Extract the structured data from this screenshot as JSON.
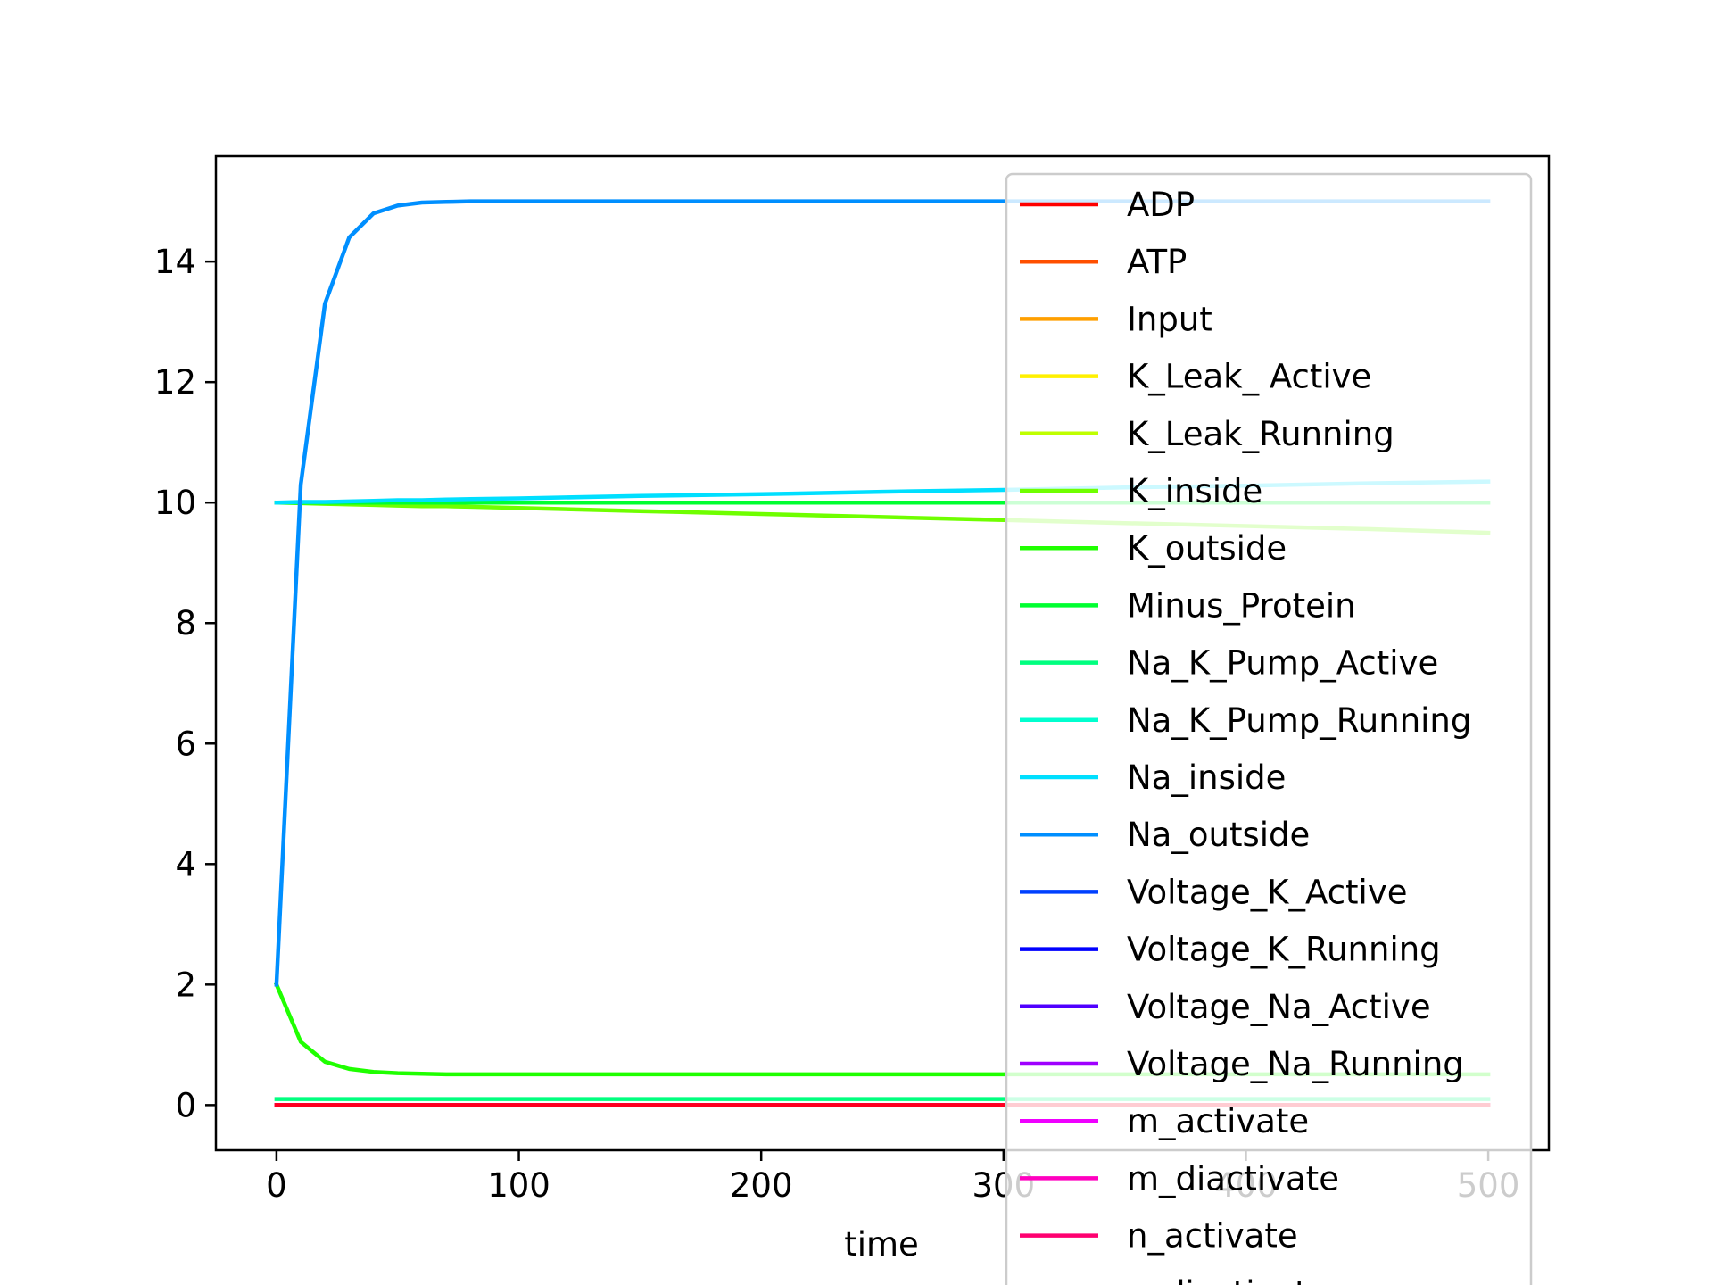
{
  "chart_data": {
    "type": "line",
    "xlabel": "time",
    "ylabel": "",
    "xlim": [
      -25,
      525
    ],
    "ylim": [
      -0.75,
      15.75
    ],
    "xticks": [
      0,
      100,
      200,
      300,
      400,
      500
    ],
    "yticks": [
      0,
      2,
      4,
      6,
      8,
      10,
      12,
      14
    ],
    "xtick_labels": [
      "0",
      "100",
      "200",
      "300",
      "400",
      "500"
    ],
    "ytick_labels": [
      "0",
      "2",
      "4",
      "6",
      "8",
      "10",
      "12",
      "14"
    ],
    "legend_position": "right",
    "x": [
      0,
      10,
      20,
      30,
      40,
      50,
      60,
      70,
      80,
      100,
      150,
      200,
      250,
      300,
      350,
      400,
      450,
      500
    ],
    "series": [
      {
        "name": "ADP",
        "color": "#ff0000",
        "values": [
          0,
          0,
          0,
          0,
          0,
          0,
          0,
          0,
          0,
          0,
          0,
          0,
          0,
          0,
          0,
          0,
          0,
          0
        ]
      },
      {
        "name": "ATP",
        "color": "#ff4f00",
        "values": [
          0,
          0,
          0,
          0,
          0,
          0,
          0,
          0,
          0,
          0,
          0,
          0,
          0,
          0,
          0,
          0,
          0,
          0
        ]
      },
      {
        "name": "Input",
        "color": "#ff9f00",
        "values": [
          0,
          0,
          0,
          0,
          0,
          0,
          0,
          0,
          0,
          0,
          0,
          0,
          0,
          0,
          0,
          0,
          0,
          0
        ]
      },
      {
        "name": "K_Leak_ Active",
        "color": "#fff000",
        "values": [
          0,
          0,
          0,
          0,
          0,
          0,
          0,
          0,
          0,
          0,
          0,
          0,
          0,
          0,
          0,
          0,
          0,
          0
        ]
      },
      {
        "name": "K_Leak_Running",
        "color": "#bfff00",
        "values": [
          0,
          0,
          0,
          0,
          0,
          0,
          0,
          0,
          0,
          0,
          0,
          0,
          0,
          0,
          0,
          0,
          0,
          0
        ]
      },
      {
        "name": "K_inside",
        "color": "#6fff00",
        "values": [
          10,
          9.99,
          9.98,
          9.97,
          9.96,
          9.95,
          9.94,
          9.94,
          9.93,
          9.91,
          9.86,
          9.81,
          9.76,
          9.71,
          9.66,
          9.61,
          9.56,
          9.5
        ]
      },
      {
        "name": "K_outside",
        "color": "#1fff00",
        "values": [
          2,
          1.05,
          0.72,
          0.6,
          0.55,
          0.53,
          0.52,
          0.51,
          0.51,
          0.51,
          0.51,
          0.51,
          0.51,
          0.51,
          0.51,
          0.51,
          0.51,
          0.51
        ]
      },
      {
        "name": "Minus_Protein",
        "color": "#00ff30",
        "values": [
          10,
          10,
          10,
          10,
          10,
          10,
          10,
          10,
          10,
          10,
          10,
          10,
          10,
          10,
          10,
          10,
          10,
          10
        ]
      },
      {
        "name": "Na_K_Pump_Active",
        "color": "#00ff7f",
        "values": [
          0.1,
          0.1,
          0.1,
          0.1,
          0.1,
          0.1,
          0.1,
          0.1,
          0.1,
          0.1,
          0.1,
          0.1,
          0.1,
          0.1,
          0.1,
          0.1,
          0.1,
          0.1
        ]
      },
      {
        "name": "Na_K_Pump_Running",
        "color": "#00ffcf",
        "values": [
          0,
          0,
          0,
          0,
          0,
          0,
          0,
          0,
          0,
          0,
          0,
          0,
          0,
          0,
          0,
          0,
          0,
          0
        ]
      },
      {
        "name": "Na_inside",
        "color": "#00dfff",
        "values": [
          10,
          10.01,
          10.01,
          10.02,
          10.03,
          10.04,
          10.04,
          10.05,
          10.06,
          10.07,
          10.11,
          10.14,
          10.18,
          10.21,
          10.25,
          10.28,
          10.32,
          10.35
        ]
      },
      {
        "name": "Na_outside",
        "color": "#008fff",
        "values": [
          2,
          10.3,
          13.3,
          14.4,
          14.8,
          14.93,
          14.98,
          14.99,
          15,
          15,
          15,
          15,
          15,
          15,
          15,
          15,
          15,
          15
        ]
      },
      {
        "name": "Voltage_K_Active",
        "color": "#0040ff",
        "values": [
          0,
          0,
          0,
          0,
          0,
          0,
          0,
          0,
          0,
          0,
          0,
          0,
          0,
          0,
          0,
          0,
          0,
          0
        ]
      },
      {
        "name": "Voltage_K_Running",
        "color": "#0000ff",
        "values": [
          0,
          0,
          0,
          0,
          0,
          0,
          0,
          0,
          0,
          0,
          0,
          0,
          0,
          0,
          0,
          0,
          0,
          0
        ]
      },
      {
        "name": "Voltage_Na_Active",
        "color": "#4f00ff",
        "values": [
          0,
          0,
          0,
          0,
          0,
          0,
          0,
          0,
          0,
          0,
          0,
          0,
          0,
          0,
          0,
          0,
          0,
          0
        ]
      },
      {
        "name": "Voltage_Na_Running",
        "color": "#9f00ff",
        "values": [
          0,
          0,
          0,
          0,
          0,
          0,
          0,
          0,
          0,
          0,
          0,
          0,
          0,
          0,
          0,
          0,
          0,
          0
        ]
      },
      {
        "name": "m_activate",
        "color": "#ef00ff",
        "values": [
          0,
          0,
          0,
          0,
          0,
          0,
          0,
          0,
          0,
          0,
          0,
          0,
          0,
          0,
          0,
          0,
          0,
          0
        ]
      },
      {
        "name": "m_diactivate",
        "color": "#ff00bf",
        "values": [
          0,
          0,
          0,
          0,
          0,
          0,
          0,
          0,
          0,
          0,
          0,
          0,
          0,
          0,
          0,
          0,
          0,
          0
        ]
      },
      {
        "name": "n_activate",
        "color": "#ff0070",
        "values": [
          0,
          0,
          0,
          0,
          0,
          0,
          0,
          0,
          0,
          0,
          0,
          0,
          0,
          0,
          0,
          0,
          0,
          0
        ]
      },
      {
        "name": "n_diactivate",
        "color": "#ff0020",
        "values": [
          0,
          0,
          0,
          0,
          0,
          0,
          0,
          0,
          0,
          0,
          0,
          0,
          0,
          0,
          0,
          0,
          0,
          0
        ]
      }
    ]
  }
}
